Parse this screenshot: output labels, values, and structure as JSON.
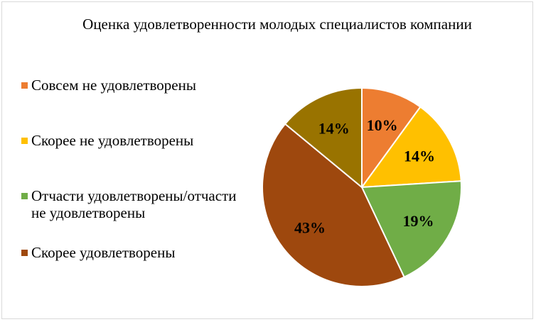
{
  "chart_data": {
    "type": "pie",
    "title": "Оценка удовлетворенности молодых специалистов компании",
    "slices": [
      {
        "label": "Совсем не удовлетворены",
        "value": 10,
        "display": "10%",
        "color": "#ED7D31"
      },
      {
        "label": "Скорее не удовлетворены",
        "value": 14,
        "display": "14%",
        "color": "#FFC000"
      },
      {
        "label": "Отчасти удовлетворены/отчасти не удовлетворены",
        "value": 19,
        "display": "19%",
        "color": "#70AD47"
      },
      {
        "label": "Скорее удовлетворены",
        "value": 43,
        "display": "43%",
        "color": "#9E480E"
      },
      {
        "label": "",
        "value": 14,
        "display": "14%",
        "color": "#997300"
      }
    ],
    "legend_position": "left",
    "data_labels": "inside"
  }
}
